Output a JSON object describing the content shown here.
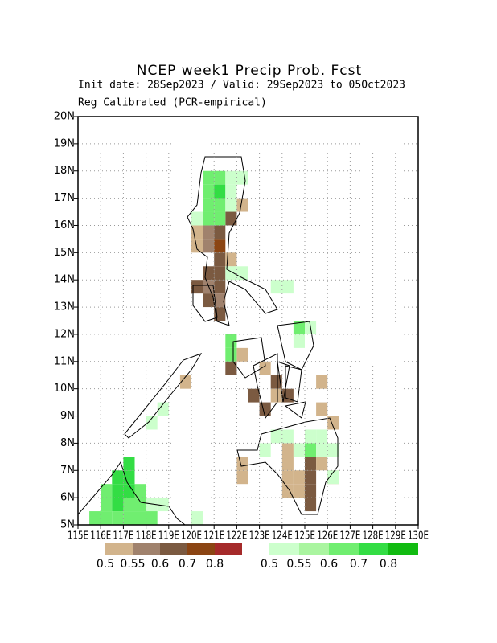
{
  "map": {
    "title": "NCEP week1 Precip Prob. Fcst",
    "subtitle": "Init date: 28Sep2023 / Valid: 29Sep2023 to 05Oct2023",
    "method": "Reg Calibrated (PCR-empirical)",
    "lonlim": [
      115,
      130
    ],
    "latlim": [
      5,
      20
    ],
    "lonticks": [
      {
        "value": 115,
        "label": "115E"
      },
      {
        "value": 116,
        "label": "116E"
      },
      {
        "value": 117,
        "label": "117E"
      },
      {
        "value": 118,
        "label": "118E"
      },
      {
        "value": 119,
        "label": "119E"
      },
      {
        "value": 120,
        "label": "120E"
      },
      {
        "value": 121,
        "label": "121E"
      },
      {
        "value": 122,
        "label": "122E"
      },
      {
        "value": 123,
        "label": "123E"
      },
      {
        "value": 124,
        "label": "124E"
      },
      {
        "value": 125,
        "label": "125E"
      },
      {
        "value": 126,
        "label": "126E"
      },
      {
        "value": 127,
        "label": "127E"
      },
      {
        "value": 128,
        "label": "128E"
      },
      {
        "value": 129,
        "label": "129E"
      },
      {
        "value": 130,
        "label": "130E"
      }
    ],
    "latticks": [
      {
        "value": 5,
        "label": "5N"
      },
      {
        "value": 6,
        "label": "6N"
      },
      {
        "value": 7,
        "label": "7N"
      },
      {
        "value": 8,
        "label": "8N"
      },
      {
        "value": 9,
        "label": "9N"
      },
      {
        "value": 10,
        "label": "10N"
      },
      {
        "value": 11,
        "label": "11N"
      },
      {
        "value": 12,
        "label": "12N"
      },
      {
        "value": 13,
        "label": "13N"
      },
      {
        "value": 14,
        "label": "14N"
      },
      {
        "value": 15,
        "label": "15N"
      },
      {
        "value": 16,
        "label": "16N"
      },
      {
        "value": 17,
        "label": "17N"
      },
      {
        "value": 18,
        "label": "18N"
      },
      {
        "value": 19,
        "label": "19N"
      },
      {
        "value": 20,
        "label": "20N"
      }
    ],
    "grid": true,
    "cell_size": 0.5,
    "below": {
      "colors": [
        "#d2b48c",
        "#a0826d",
        "#7b5a41",
        "#8b4513",
        "#a52a2a"
      ],
      "ticks": [
        0.5,
        0.55,
        0.6,
        0.7,
        0.8
      ],
      "cells": [
        [
          122.0,
          16.5,
          0.5
        ],
        [
          121.5,
          16.0,
          0.6
        ],
        [
          120.0,
          15.5,
          0.5
        ],
        [
          120.5,
          15.5,
          0.55
        ],
        [
          121.0,
          15.5,
          0.6
        ],
        [
          120.0,
          15.0,
          0.5
        ],
        [
          120.5,
          15.0,
          0.55
        ],
        [
          121.0,
          15.0,
          0.7
        ],
        [
          121.0,
          14.5,
          0.6
        ],
        [
          121.5,
          14.5,
          0.5
        ],
        [
          120.5,
          14.0,
          0.6
        ],
        [
          121.0,
          14.0,
          0.6
        ],
        [
          120.0,
          13.5,
          0.6
        ],
        [
          120.5,
          13.5,
          0.55
        ],
        [
          121.0,
          13.5,
          0.6
        ],
        [
          120.5,
          13.0,
          0.6
        ],
        [
          121.0,
          13.0,
          0.55
        ],
        [
          121.0,
          12.5,
          0.6
        ],
        [
          121.5,
          10.5,
          0.6
        ],
        [
          122.0,
          11.0,
          0.5
        ],
        [
          123.0,
          10.5,
          0.5
        ],
        [
          123.5,
          10.0,
          0.6
        ],
        [
          122.5,
          9.5,
          0.6
        ],
        [
          123.0,
          9.0,
          0.6
        ],
        [
          123.5,
          9.5,
          0.5
        ],
        [
          124.0,
          9.5,
          0.6
        ],
        [
          125.5,
          10.0,
          0.5
        ],
        [
          125.5,
          9.0,
          0.5
        ],
        [
          126.0,
          8.5,
          0.5
        ],
        [
          124.0,
          7.5,
          0.5
        ],
        [
          124.0,
          7.0,
          0.5
        ],
        [
          125.0,
          7.0,
          0.6
        ],
        [
          125.5,
          7.0,
          0.5
        ],
        [
          124.0,
          6.5,
          0.5
        ],
        [
          124.5,
          6.5,
          0.5
        ],
        [
          125.0,
          6.5,
          0.6
        ],
        [
          126.0,
          6.5,
          0.5
        ],
        [
          124.0,
          6.0,
          0.5
        ],
        [
          124.5,
          6.0,
          0.5
        ],
        [
          125.0,
          6.0,
          0.6
        ],
        [
          125.0,
          5.5,
          0.6
        ],
        [
          122.0,
          7.0,
          0.5
        ],
        [
          122.0,
          6.5,
          0.5
        ],
        [
          119.5,
          10.0,
          0.5
        ]
      ]
    },
    "above": {
      "colors": [
        "#ccffcc",
        "#aaf5a0",
        "#70ee70",
        "#33dd44",
        "#11bb11"
      ],
      "ticks": [
        0.5,
        0.55,
        0.6,
        0.7,
        0.8
      ],
      "cells": [
        [
          120.5,
          17.5,
          0.6
        ],
        [
          121.0,
          17.5,
          0.6
        ],
        [
          121.5,
          17.5,
          0.5
        ],
        [
          122.0,
          17.5,
          0.5
        ],
        [
          120.5,
          17.0,
          0.6
        ],
        [
          121.0,
          17.0,
          0.7
        ],
        [
          121.5,
          17.0,
          0.5
        ],
        [
          120.5,
          16.5,
          0.6
        ],
        [
          121.0,
          16.5,
          0.6
        ],
        [
          121.5,
          16.5,
          0.5
        ],
        [
          120.5,
          16.0,
          0.6
        ],
        [
          121.0,
          16.0,
          0.6
        ],
        [
          120.0,
          16.0,
          0.5
        ],
        [
          121.5,
          14.0,
          0.5
        ],
        [
          122.0,
          14.0,
          0.5
        ],
        [
          123.5,
          13.5,
          0.5
        ],
        [
          124.0,
          13.5,
          0.5
        ],
        [
          124.5,
          12.0,
          0.6
        ],
        [
          125.0,
          12.0,
          0.5
        ],
        [
          124.5,
          11.5,
          0.5
        ],
        [
          121.5,
          11.5,
          0.6
        ],
        [
          121.5,
          11.0,
          0.6
        ],
        [
          123.5,
          8.0,
          0.5
        ],
        [
          124.0,
          8.0,
          0.5
        ],
        [
          125.0,
          8.0,
          0.5
        ],
        [
          125.5,
          8.0,
          0.5
        ],
        [
          123.0,
          7.5,
          0.5
        ],
        [
          124.5,
          7.5,
          0.5
        ],
        [
          125.0,
          7.5,
          0.6
        ],
        [
          125.5,
          7.5,
          0.5
        ],
        [
          126.0,
          7.5,
          0.5
        ],
        [
          126.0,
          6.5,
          0.5
        ],
        [
          118.5,
          9.0,
          0.5
        ],
        [
          118.0,
          8.5,
          0.5
        ],
        [
          117.0,
          7.0,
          0.7
        ],
        [
          116.5,
          6.5,
          0.7
        ],
        [
          117.0,
          6.5,
          0.7
        ],
        [
          116.0,
          6.0,
          0.6
        ],
        [
          116.5,
          6.0,
          0.7
        ],
        [
          117.0,
          6.0,
          0.7
        ],
        [
          117.5,
          6.0,
          0.6
        ],
        [
          116.0,
          5.5,
          0.6
        ],
        [
          116.5,
          5.5,
          0.7
        ],
        [
          117.0,
          5.5,
          0.6
        ],
        [
          117.5,
          5.5,
          0.6
        ],
        [
          118.0,
          5.5,
          0.5
        ],
        [
          118.5,
          5.5,
          0.5
        ],
        [
          115.5,
          5.0,
          0.6
        ],
        [
          116.0,
          5.0,
          0.6
        ],
        [
          116.5,
          5.0,
          0.6
        ],
        [
          117.0,
          5.0,
          0.6
        ],
        [
          117.5,
          5.0,
          0.6
        ],
        [
          118.0,
          5.0,
          0.6
        ],
        [
          120.0,
          5.0,
          0.5
        ]
      ]
    }
  }
}
